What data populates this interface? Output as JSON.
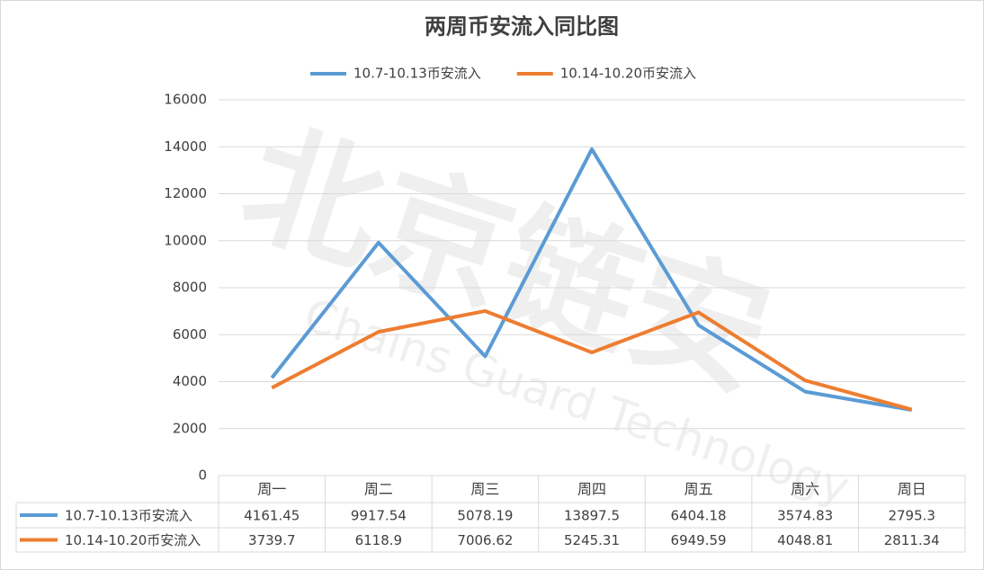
{
  "chart_data": {
    "type": "line",
    "title": "两周币安流入同比图",
    "categories": [
      "周一",
      "周二",
      "周三",
      "周四",
      "周五",
      "周六",
      "周日"
    ],
    "series": [
      {
        "name": "10.7-10.13币安流入",
        "color": "#5b9bd5",
        "values": [
          4161.45,
          9917.54,
          5078.19,
          13897.5,
          6404.18,
          3574.83,
          2795.3
        ]
      },
      {
        "name": "10.14-10.20币安流入",
        "color": "#ed7d31",
        "values": [
          3739.7,
          6118.9,
          7006.62,
          5245.31,
          6949.59,
          4048.81,
          2811.34
        ]
      }
    ],
    "ylim": [
      0,
      16000
    ],
    "yticks": [
      0,
      2000,
      4000,
      6000,
      8000,
      10000,
      12000,
      14000,
      16000
    ],
    "grid": true,
    "legend": "top",
    "data_table": true,
    "watermark": {
      "logo": "北京链安",
      "text": "Chains Guard Technology"
    }
  }
}
